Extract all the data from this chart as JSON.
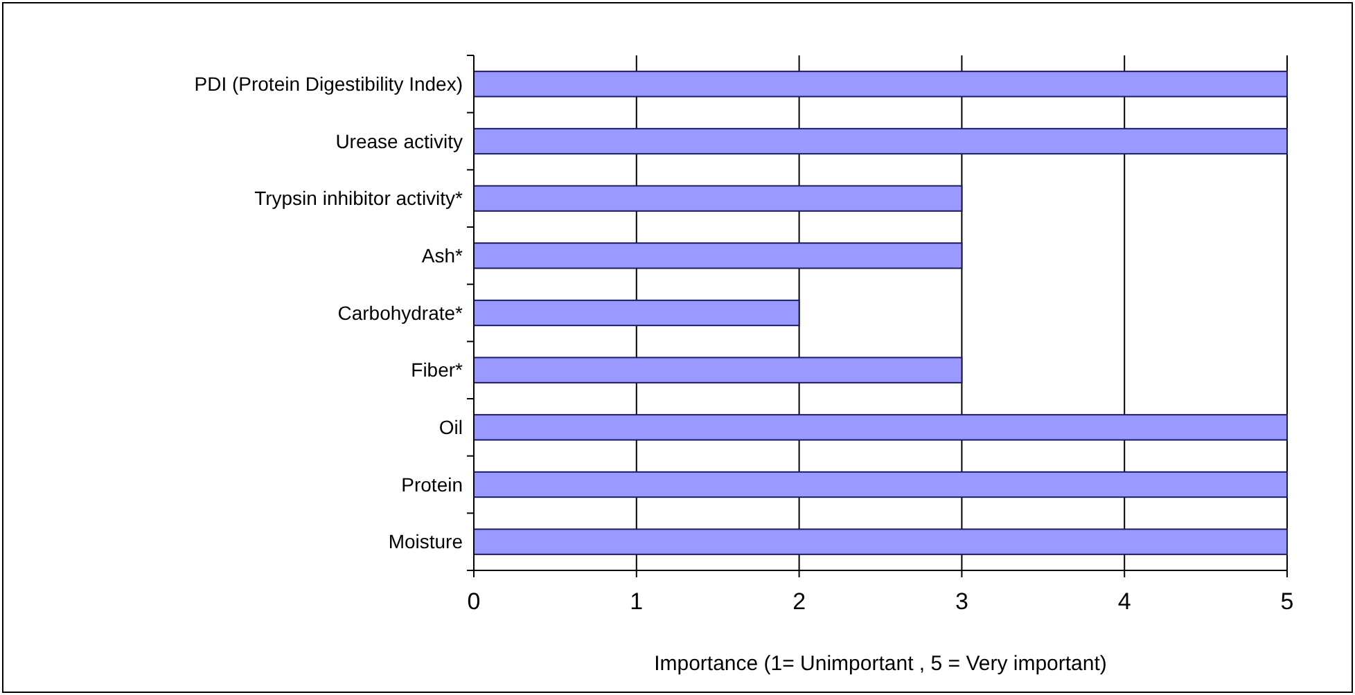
{
  "chart_data": {
    "type": "bar",
    "orientation": "horizontal",
    "xlabel": "Importance (1= Unimportant , 5 = Very important)",
    "categories": [
      "PDI (Protein Digestibility Index)",
      "Urease activity",
      "Trypsin inhibitor activity*",
      "Ash*",
      "Carbohydrate*",
      "Fiber*",
      "Oil",
      "Protein",
      "Moisture"
    ],
    "values": [
      5,
      5,
      3,
      3,
      2,
      3,
      5,
      5,
      5
    ],
    "color": "#9999ff",
    "xlim": [
      0,
      5
    ],
    "xticks": [
      0,
      1,
      2,
      3,
      4,
      5
    ],
    "grid": "x"
  }
}
